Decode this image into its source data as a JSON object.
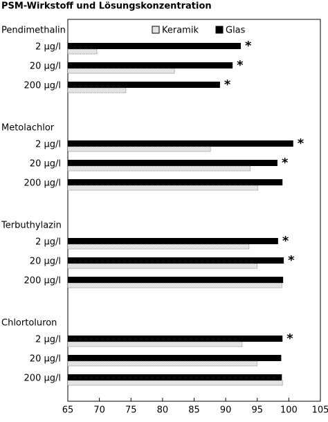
{
  "chart_data": {
    "type": "bar",
    "orientation": "horizontal",
    "title": "PSM-Wirkstoff und Lösungskonzentration",
    "groups": [
      "Pendimethalin",
      "Metolachlor",
      "Terbuthylazin",
      "Chlortoluron"
    ],
    "categories": [
      "2 µg/l",
      "20 µg/l",
      "200 µg/l",
      "2 µg/l",
      "20 µg/l",
      "200 µg/l",
      "2 µg/l",
      "20 µg/l",
      "200 µg/l",
      "2 µg/l",
      "20 µg/l",
      "200 µg/l"
    ],
    "series": [
      {
        "name": "Glas",
        "color": "#000000",
        "values": [
          92.4,
          91.1,
          89.1,
          100.7,
          98.2,
          99.0,
          98.3,
          99.2,
          99.1,
          99.0,
          98.8,
          98.9
        ]
      },
      {
        "name": "Keramik",
        "color": "#e4e4e4",
        "values": [
          69.6,
          81.9,
          74.2,
          87.6,
          93.9,
          95.1,
          93.7,
          95.0,
          98.9,
          92.6,
          95.0,
          99.0
        ]
      }
    ],
    "significance": [
      "*",
      "*",
      "*",
      "*",
      "*",
      null,
      "*",
      "*",
      null,
      "*",
      null,
      null
    ],
    "xlim": [
      65,
      105
    ],
    "xticks": [
      65,
      70,
      75,
      80,
      85,
      90,
      95,
      100,
      105
    ]
  }
}
